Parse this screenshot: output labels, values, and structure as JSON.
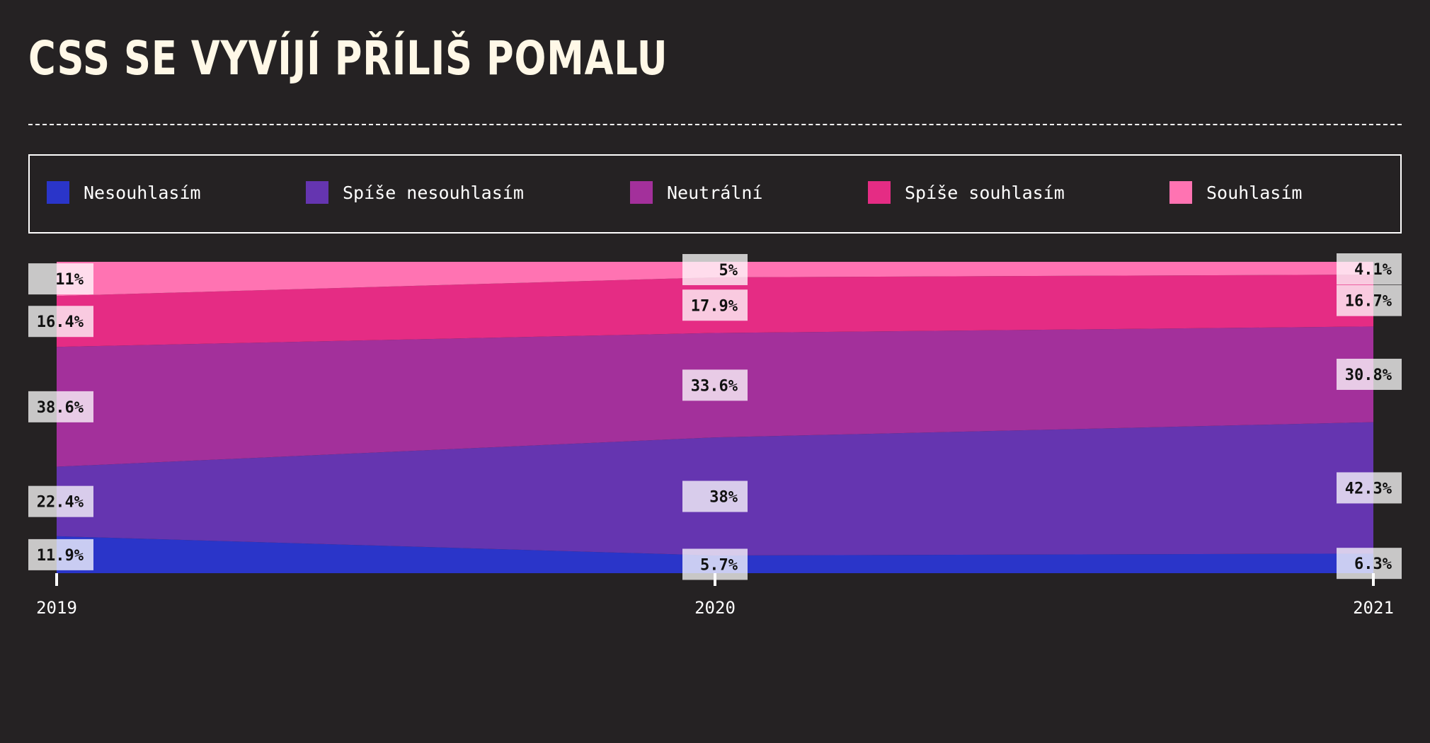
{
  "chart_data": {
    "type": "area",
    "stacked": true,
    "normalized": true,
    "title": "CSS se vyvíjí příliš pomalu",
    "xlabel": "",
    "ylabel": "",
    "x": [
      "2019",
      "2020",
      "2021"
    ],
    "series": [
      {
        "name": "Nesouhlasím",
        "color": "#2a35c9",
        "values": [
          11.9,
          5.7,
          6.3
        ],
        "labels": [
          "11.9%",
          "5.7%",
          "6.3%"
        ]
      },
      {
        "name": "Spíše nesouhlasím",
        "color": "#6535b0",
        "values": [
          22.4,
          38,
          42.3
        ],
        "labels": [
          "22.4%",
          "38%",
          "42.3%"
        ]
      },
      {
        "name": "Neutrální",
        "color": "#a3309b",
        "values": [
          38.6,
          33.6,
          30.8
        ],
        "labels": [
          "38.6%",
          "33.6%",
          "30.8%"
        ]
      },
      {
        "name": "Spíše souhlasím",
        "color": "#e52c84",
        "values": [
          16.4,
          17.9,
          16.7
        ],
        "labels": [
          "16.4%",
          "17.9%",
          "16.7%"
        ]
      },
      {
        "name": "Souhlasím",
        "color": "#ff73b2",
        "values": [
          11,
          5,
          4.1
        ],
        "labels": [
          "11%",
          "5%",
          "4.1%"
        ]
      }
    ],
    "ylim": [
      0,
      100
    ],
    "legend_position": "top",
    "grid": false
  }
}
